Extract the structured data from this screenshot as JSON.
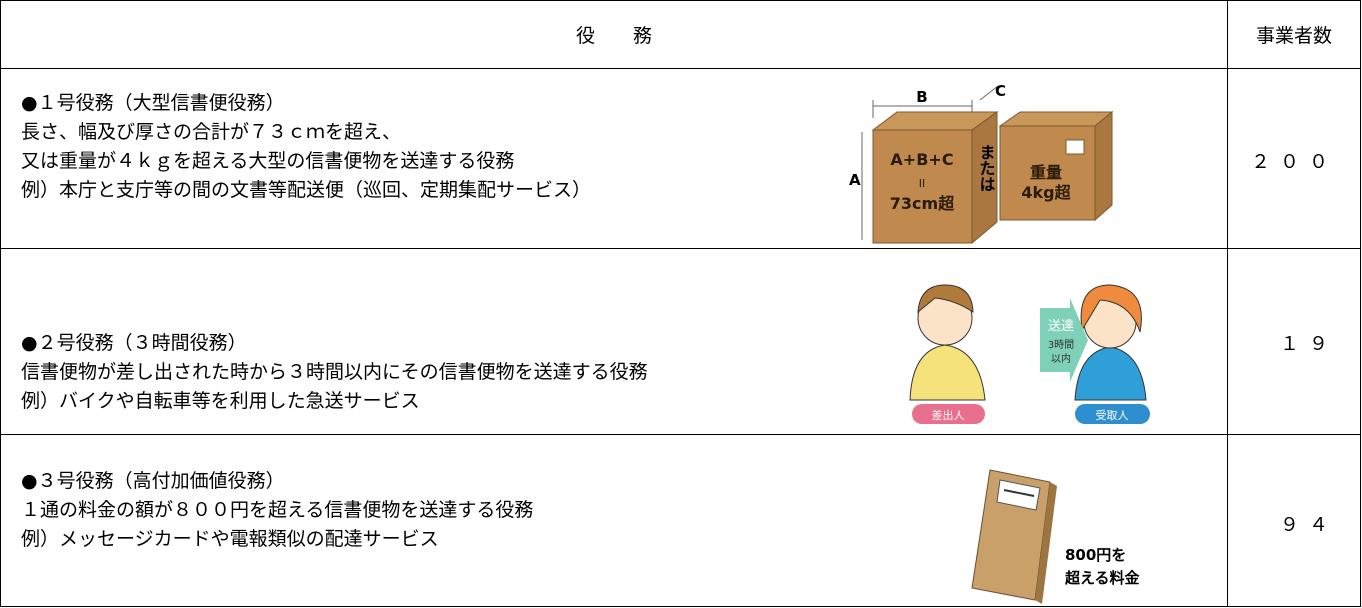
{
  "table": {
    "header": [
      "役　　務",
      "事業者数"
    ],
    "rows": [
      {
        "lines": [
          "●１号役務（大型信書便役務）",
          "長さ、幅及び厚さの合計が７３ｃｍを超え、",
          "又は重量が４ｋｇを超える大型の信書便物を送達する役務",
          "例）本庁と支庁等の間の文書等配送便（巡回、定期集配サービス）"
        ],
        "count": "２００",
        "illustration": {
          "dim_b": "B",
          "dim_c": "C",
          "dim_a": "A",
          "sum": "A+B+C",
          "equals": "II",
          "size": "73cm超",
          "or": "または",
          "weight": "重量",
          "weight_limit": "4kg超"
        }
      },
      {
        "lines": [
          "●２号役務（３時間役務）",
          "信書便物が差し出された時から３時間以内にその信書便物を送達する役務",
          "例）バイクや自転車等を利用した急送サービス"
        ],
        "count": "１９",
        "illustration": {
          "arrow_title": "送達",
          "arrow_time": "3時間",
          "arrow_within": "以内",
          "sender": "差出人",
          "receiver": "受取人"
        }
      },
      {
        "lines": [
          "●３号役務（高付加価値役務）",
          "１通の料金の額が８００円を超える信書便物を送達する役務",
          "例）メッセージカードや電報類似の配達サービス"
        ],
        "count": "９４",
        "illustration": {
          "price": "800円を",
          "price_note": "超える料金"
        }
      }
    ]
  }
}
